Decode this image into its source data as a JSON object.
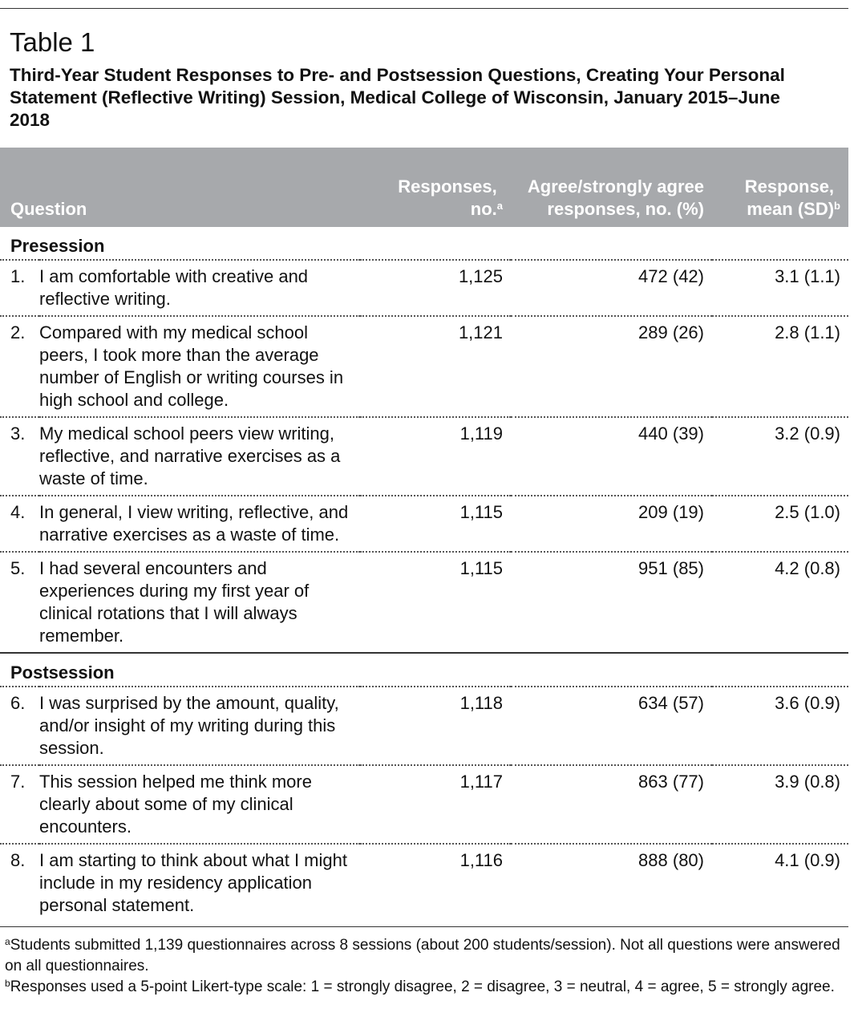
{
  "table_label": "Table 1",
  "title": "Third-Year Student Responses to Pre- and Postsession Questions, Creating Your Personal Statement (Reflective Writing) Session, Medical College of Wisconsin, January 2015–June 2018",
  "header": {
    "question": "Question",
    "responses": "Responses, no.",
    "responses_note": "a",
    "agree": "Agree/strongly agree responses, no. (%)",
    "mean": "Response, mean (SD)",
    "mean_note": "b"
  },
  "sections": [
    {
      "name": "Presession",
      "rows": [
        {
          "num": "1.",
          "question": "I am comfortable with creative and reflective writing.",
          "responses": "1,125",
          "agree": "472 (42)",
          "mean": "3.1 (1.1)"
        },
        {
          "num": "2.",
          "question": "Compared with my medical school peers, I took more than the average number of English or writing courses in high school and college.",
          "responses": "1,121",
          "agree": "289 (26)",
          "mean": "2.8 (1.1)"
        },
        {
          "num": "3.",
          "question": "My medical school peers view writing, reflective, and narrative exercises as a waste of time.",
          "responses": "1,119",
          "agree": "440 (39)",
          "mean": "3.2 (0.9)"
        },
        {
          "num": "4.",
          "question": "In general, I view writing, reflective, and narrative exercises as a waste of time.",
          "responses": "1,115",
          "agree": "209 (19)",
          "mean": "2.5 (1.0)"
        },
        {
          "num": "5.",
          "question": "I had several encounters and experiences during my first year of clinical rotations that I will always remember.",
          "responses": "1,115",
          "agree": "951 (85)",
          "mean": "4.2 (0.8)"
        }
      ]
    },
    {
      "name": "Postsession",
      "rows": [
        {
          "num": "6.",
          "question": "I was surprised by the amount, quality, and/or insight of my writing during this session.",
          "responses": "1,118",
          "agree": "634 (57)",
          "mean": "3.6 (0.9)"
        },
        {
          "num": "7.",
          "question": "This session helped me think more clearly about some of my clinical encounters.",
          "responses": "1,117",
          "agree": "863 (77)",
          "mean": "3.9 (0.8)"
        },
        {
          "num": "8.",
          "question": "I am starting to think about what I might include in my residency application personal statement.",
          "responses": "1,116",
          "agree": "888 (80)",
          "mean": "4.1 (0.9)"
        }
      ]
    }
  ],
  "footnotes": [
    {
      "mark": "a",
      "text": "Students submitted 1,139 questionnaires across 8 sessions (about 200 students/session). Not all questions were answered on all questionnaires."
    },
    {
      "mark": "b",
      "text": "Responses used a 5-point Likert-type scale: 1 = strongly disagree, 2 = disagree, 3 = neutral, 4 = agree, 5 = strongly agree."
    }
  ]
}
